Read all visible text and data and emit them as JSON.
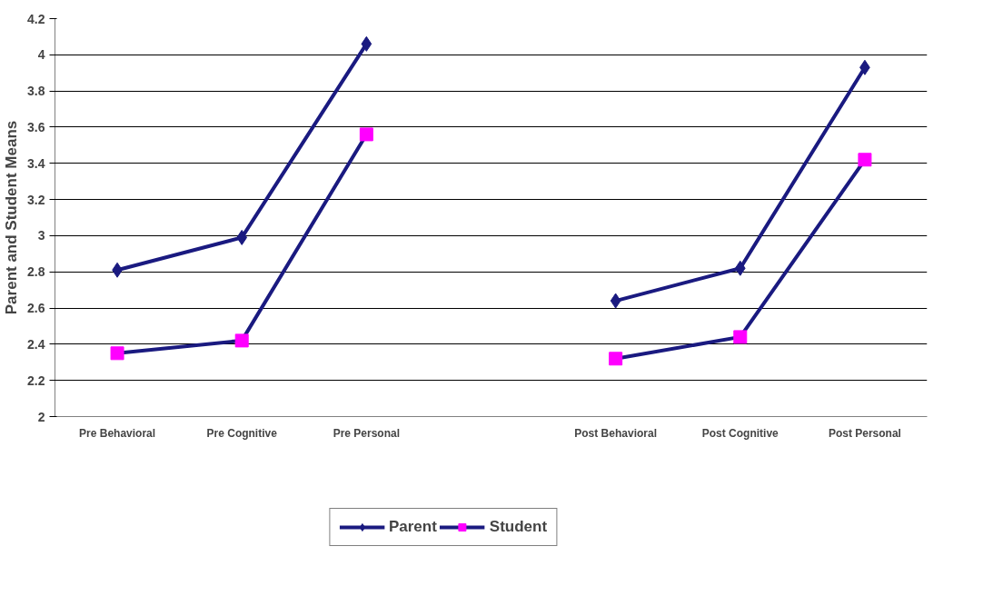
{
  "chart_data": {
    "type": "line",
    "ylabel": "Parent and Student Means",
    "categories": [
      "Pre Behavioral",
      "Pre Cognitive",
      "Pre Personal",
      null,
      "Post Behavioral",
      "Post Cognitive",
      "Post Personal"
    ],
    "series": [
      {
        "name": "Parent",
        "color": "#1a1a80",
        "marker": "diamond",
        "values": [
          2.81,
          2.99,
          4.06,
          null,
          2.64,
          2.82,
          3.93
        ]
      },
      {
        "name": "Student",
        "color": "#1a1a80",
        "colors": [
          "#ff00ff",
          "#ff00ff",
          "#ff00ff",
          "#ff00ff",
          "#ff00ff",
          "#ff00ff",
          "#ff00ff"
        ],
        "marker": "square",
        "values": [
          2.35,
          2.42,
          3.56,
          null,
          2.32,
          2.44,
          3.42
        ]
      }
    ],
    "ylim": [
      2,
      4.2
    ],
    "yticks": [
      2,
      2.2,
      2.4,
      2.6,
      2.8,
      3,
      3.2,
      3.4,
      3.6,
      3.8,
      4,
      4.2
    ],
    "grid": "y",
    "legend": "bottom",
    "line_style": "solid"
  }
}
